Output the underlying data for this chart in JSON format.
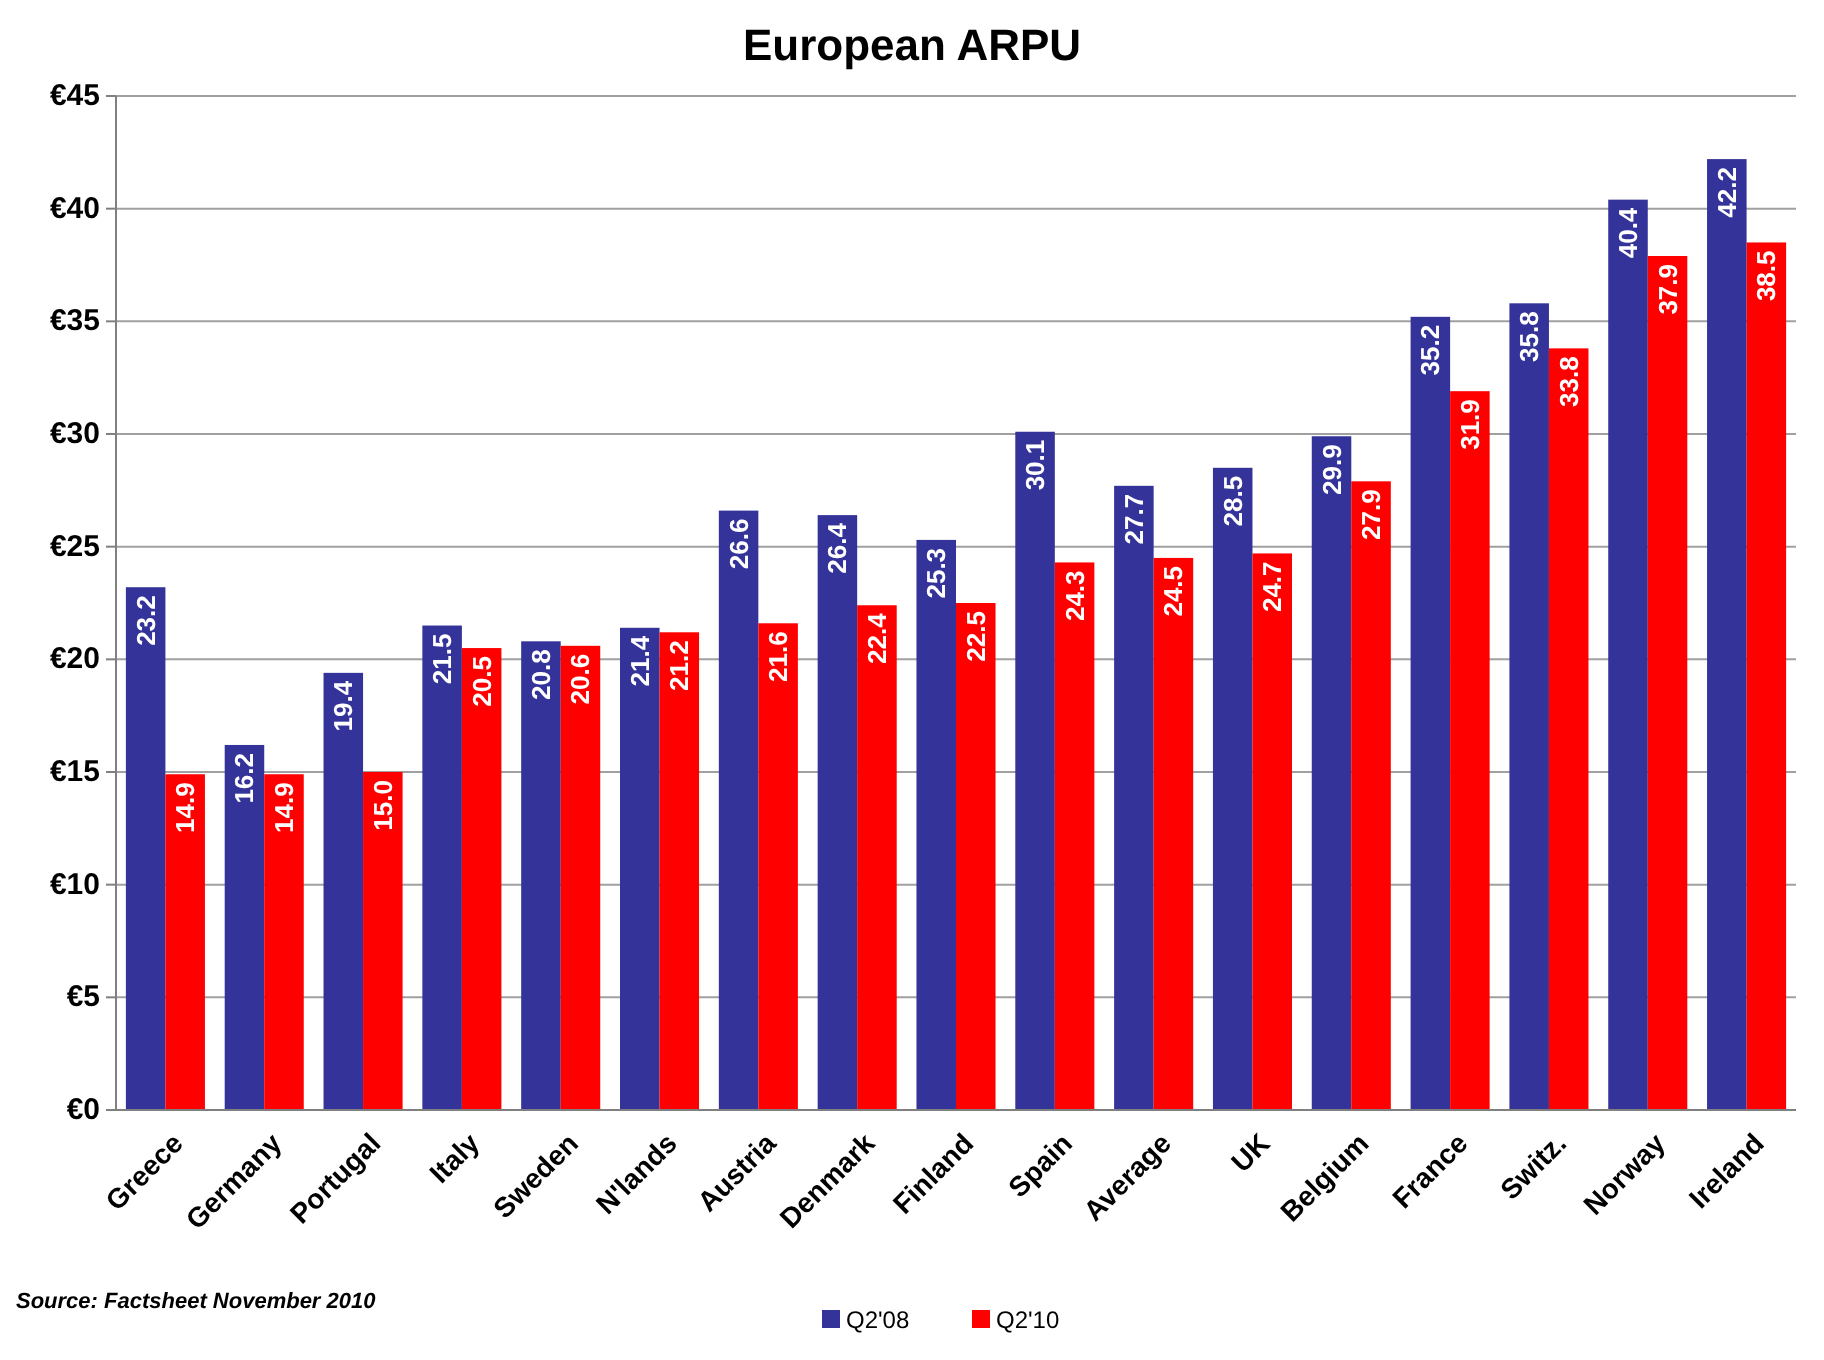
{
  "chart_data": {
    "type": "bar",
    "title": "European ARPU",
    "categories": [
      "Greece",
      "Germany",
      "Portugal",
      "Italy",
      "Sweden",
      "N'lands",
      "Austria",
      "Denmark",
      "Finland",
      "Spain",
      "Average",
      "UK",
      "Belgium",
      "France",
      "Switz.",
      "Norway",
      "Ireland"
    ],
    "series": [
      {
        "name": "Q2'08",
        "color": "#333399",
        "values": [
          23.2,
          16.2,
          19.4,
          21.5,
          20.8,
          21.4,
          26.6,
          26.4,
          25.3,
          30.1,
          27.7,
          28.5,
          29.9,
          35.2,
          35.8,
          40.4,
          42.2
        ],
        "value_labels": [
          "23.2",
          "16.2",
          "19.4",
          "21.5",
          "20.8",
          "21.4",
          "26.6",
          "26.4",
          "25.3",
          "30.1",
          "27.7",
          "28.5",
          "29.9",
          "35.2",
          "35.8",
          "40.4",
          "42.2"
        ]
      },
      {
        "name": "Q2'10",
        "color": "#ff0000",
        "values": [
          14.9,
          14.9,
          15.0,
          20.5,
          20.6,
          21.2,
          21.6,
          22.4,
          22.5,
          24.3,
          24.5,
          24.7,
          27.9,
          31.9,
          33.8,
          37.9,
          38.5
        ],
        "value_labels": [
          "14.9",
          "14.9",
          "15.0",
          "20.5",
          "20.6",
          "21.2",
          "21.6",
          "22.4",
          "22.5",
          "24.3",
          "24.5",
          "24.7",
          "27.9",
          "31.9",
          "33.8",
          "37.9",
          "38.5"
        ]
      }
    ],
    "ylim": [
      0,
      45
    ],
    "yticks": [
      {
        "value": 0,
        "label": "€0"
      },
      {
        "value": 5,
        "label": "€5"
      },
      {
        "value": 10,
        "label": "€10"
      },
      {
        "value": 15,
        "label": "€15"
      },
      {
        "value": 20,
        "label": "€20"
      },
      {
        "value": 25,
        "label": "€25"
      },
      {
        "value": 30,
        "label": "€30"
      },
      {
        "value": 35,
        "label": "€35"
      },
      {
        "value": 40,
        "label": "€40"
      },
      {
        "value": 45,
        "label": "€45"
      }
    ],
    "grid": "y",
    "legend": "bottom",
    "annotations": [
      "Source: Factsheet November 2010"
    ]
  }
}
